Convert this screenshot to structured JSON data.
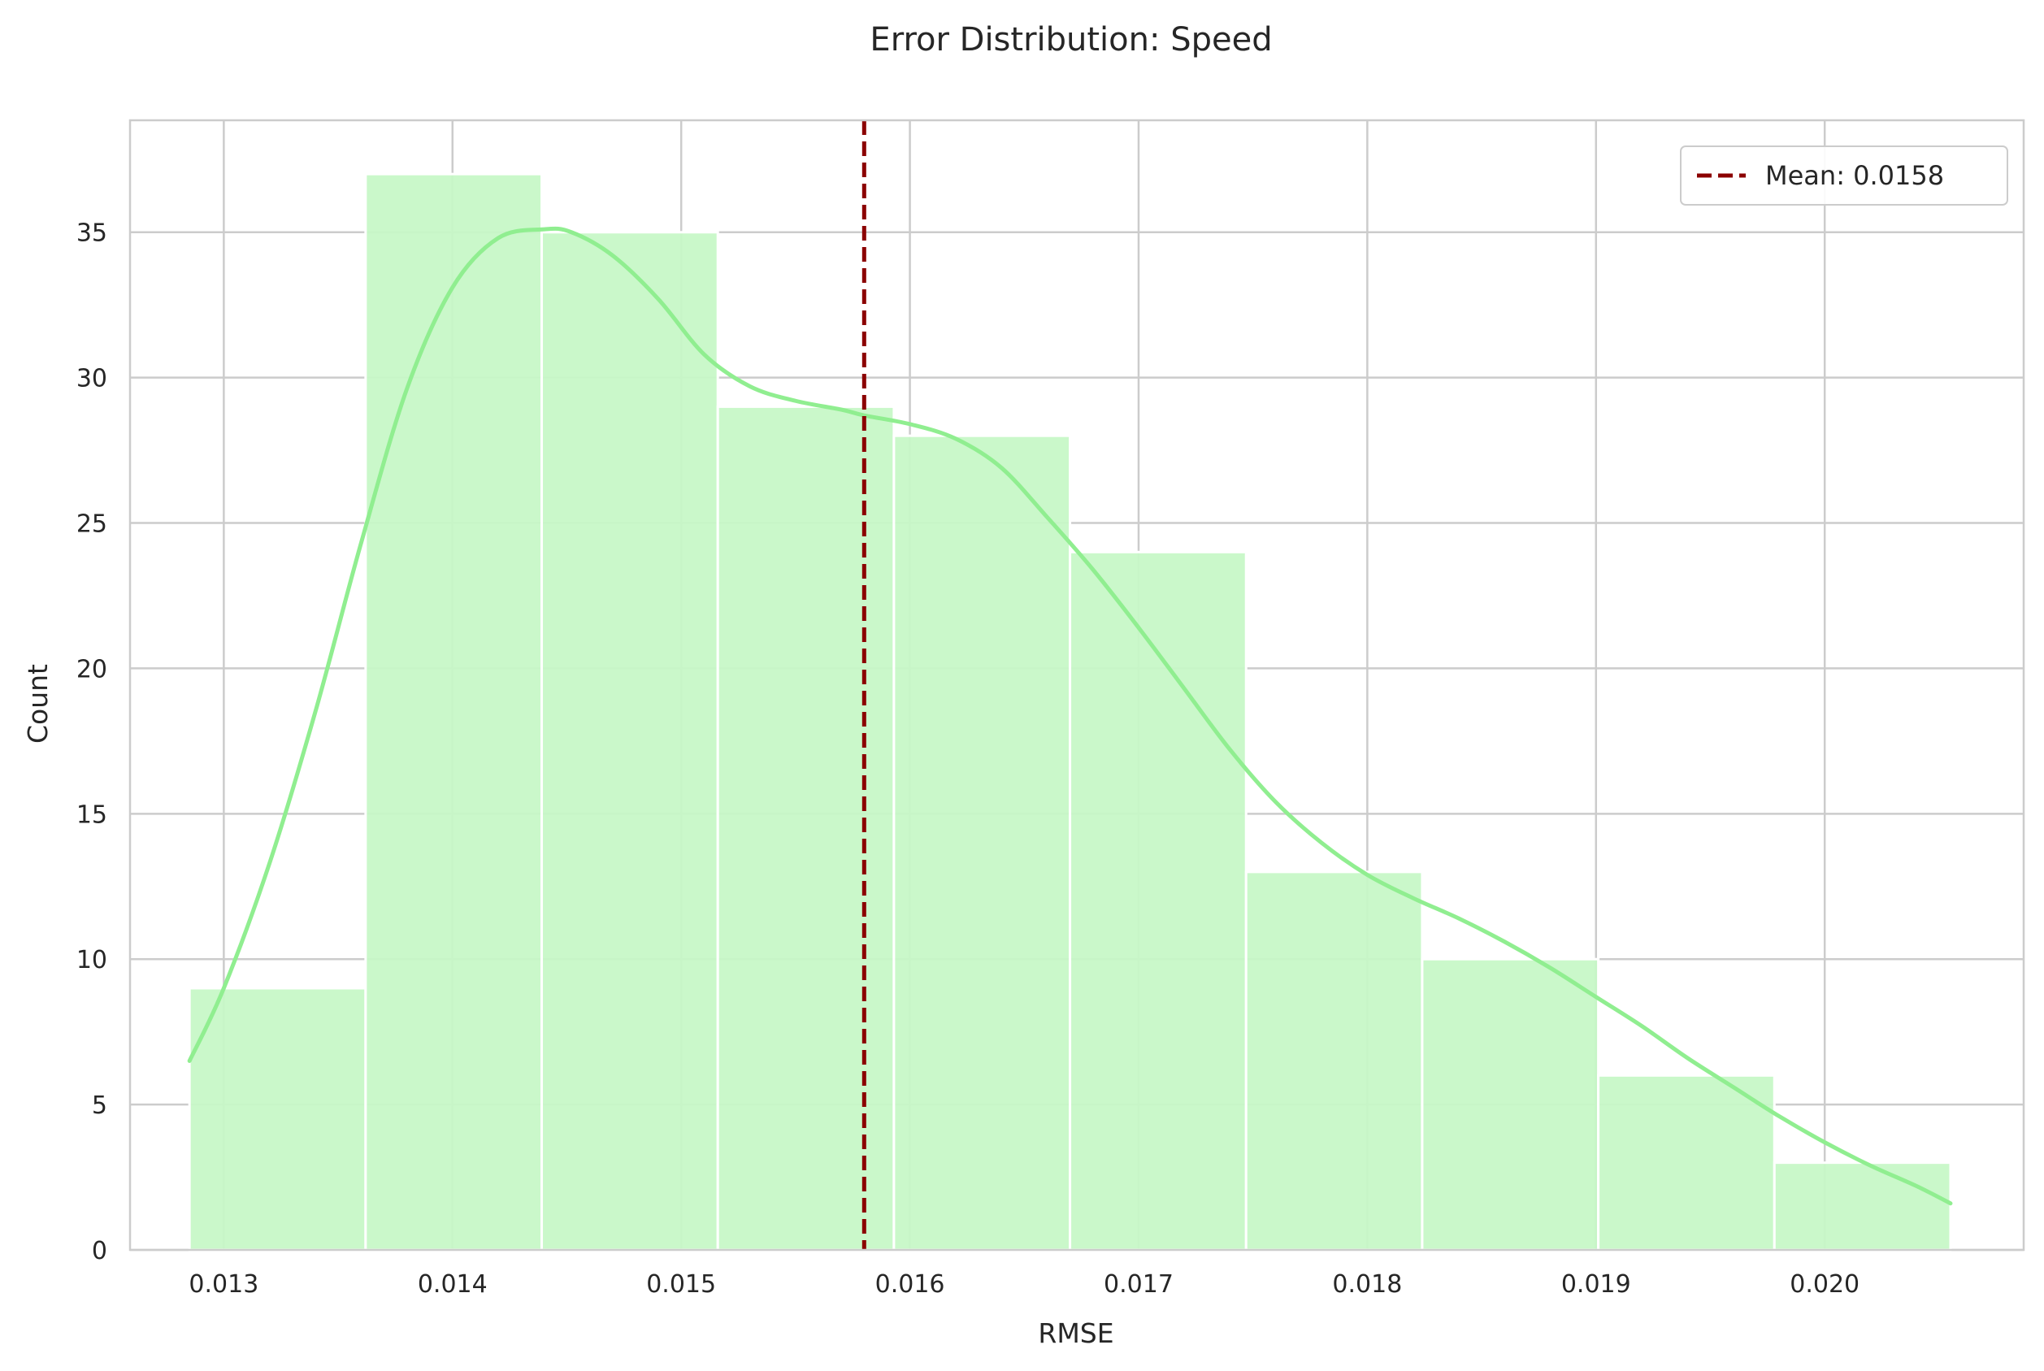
{
  "chart_data": {
    "type": "bar",
    "title": "Error Distribution: Speed",
    "xlabel": "RMSE",
    "ylabel": "Count",
    "xlim": [
      0.01259,
      0.02087
    ],
    "ylim": [
      0,
      38.85
    ],
    "x_ticks": [
      0.013,
      0.014,
      0.015,
      0.016,
      0.017,
      0.018,
      0.019,
      0.02
    ],
    "x_tick_labels": [
      "0.013",
      "0.014",
      "0.015",
      "0.016",
      "0.017",
      "0.018",
      "0.019",
      "0.020"
    ],
    "y_ticks": [
      0,
      5,
      10,
      15,
      20,
      25,
      30,
      35
    ],
    "y_tick_labels": [
      "0",
      "5",
      "10",
      "15",
      "20",
      "25",
      "30",
      "35"
    ],
    "grid": true,
    "bins": [
      {
        "x0": 0.01285,
        "x1": 0.01362,
        "count": 9
      },
      {
        "x0": 0.01362,
        "x1": 0.01439,
        "count": 37
      },
      {
        "x0": 0.01439,
        "x1": 0.01516,
        "count": 35
      },
      {
        "x0": 0.01516,
        "x1": 0.01593,
        "count": 29
      },
      {
        "x0": 0.01593,
        "x1": 0.0167,
        "count": 28
      },
      {
        "x0": 0.0167,
        "x1": 0.01747,
        "count": 24
      },
      {
        "x0": 0.01747,
        "x1": 0.01824,
        "count": 13
      },
      {
        "x0": 0.01824,
        "x1": 0.01901,
        "count": 10
      },
      {
        "x0": 0.01901,
        "x1": 0.01978,
        "count": 6
      },
      {
        "x0": 0.01978,
        "x1": 0.02055,
        "count": 3
      }
    ],
    "kde": {
      "x": [
        0.01285,
        0.013,
        0.0132,
        0.0134,
        0.0136,
        0.0138,
        0.014,
        0.0142,
        0.0144,
        0.01452,
        0.0147,
        0.0149,
        0.0151,
        0.0153,
        0.0155,
        0.0157,
        0.0158,
        0.016,
        0.0162,
        0.0164,
        0.0166,
        0.0168,
        0.017,
        0.0172,
        0.0174,
        0.0176,
        0.0178,
        0.018,
        0.0182,
        0.0184,
        0.0186,
        0.0188,
        0.019,
        0.0192,
        0.0194,
        0.0196,
        0.0198,
        0.02,
        0.0202,
        0.0204,
        0.02055
      ],
      "y": [
        6.5,
        9.0,
        13.3,
        18.5,
        24.3,
        29.6,
        33.1,
        34.8,
        35.1,
        35.0,
        34.2,
        32.7,
        30.8,
        29.7,
        29.2,
        28.9,
        28.7,
        28.4,
        27.9,
        26.9,
        25.2,
        23.4,
        21.4,
        19.3,
        17.2,
        15.4,
        14.0,
        12.9,
        12.1,
        11.4,
        10.6,
        9.7,
        8.7,
        7.7,
        6.6,
        5.6,
        4.6,
        3.7,
        2.9,
        2.2,
        1.6
      ]
    },
    "mean": 0.0158,
    "legend": {
      "entries": [
        "Mean: 0.0158"
      ],
      "placement": "top-right"
    },
    "colors": {
      "bar": "#c6f7c6",
      "bar_edge": "#ffffff",
      "kde": "#90ee90",
      "mean": "#8b0000",
      "grid": "#cccccc",
      "spine": "#cccccc"
    }
  }
}
